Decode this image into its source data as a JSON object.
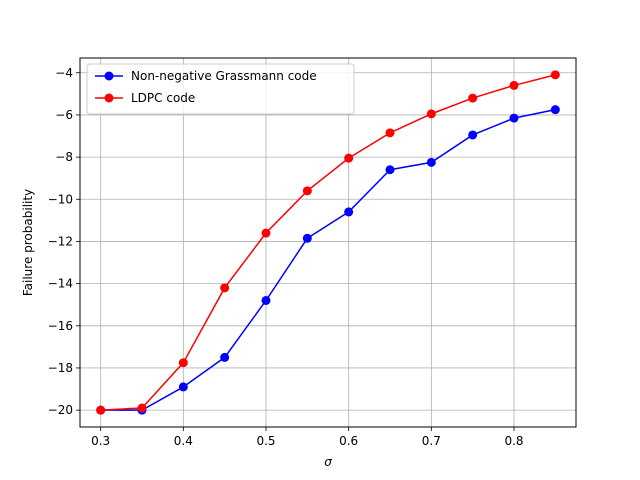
{
  "chart_data": {
    "type": "line",
    "xlabel": "σ",
    "ylabel": "Failure probability",
    "xlim": [
      0.275,
      0.875
    ],
    "ylim": [
      -20.8,
      -3.3
    ],
    "xticks": [
      0.3,
      0.4,
      0.5,
      0.6,
      0.7,
      0.8
    ],
    "xtick_labels": [
      "0.3",
      "0.4",
      "0.5",
      "0.6",
      "0.7",
      "0.8"
    ],
    "yticks": [
      -20,
      -18,
      -16,
      -14,
      -12,
      -10,
      -8,
      -6,
      -4
    ],
    "ytick_labels": [
      "−20",
      "−18",
      "−16",
      "−14",
      "−12",
      "−10",
      "−8",
      "−6",
      "−4"
    ],
    "grid": true,
    "legend_position": "top-left",
    "x": [
      0.3,
      0.35,
      0.4,
      0.45,
      0.5,
      0.55,
      0.6,
      0.65,
      0.7,
      0.75,
      0.8,
      0.85
    ],
    "series": [
      {
        "name": "Non-negative Grassmann code",
        "color": "#0000ff",
        "values": [
          -20.0,
          -20.0,
          -18.9,
          -17.5,
          -14.8,
          -11.85,
          -10.6,
          -8.6,
          -8.25,
          -6.95,
          -6.15,
          -5.75
        ]
      },
      {
        "name": "LDPC code",
        "color": "#ff0000",
        "values": [
          -20.0,
          -19.9,
          -17.75,
          -14.2,
          -11.6,
          -9.6,
          -8.05,
          -6.85,
          -5.95,
          -5.2,
          -4.6,
          -4.1
        ]
      }
    ]
  }
}
